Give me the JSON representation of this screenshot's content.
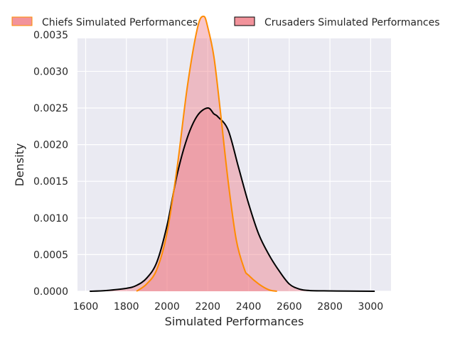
{
  "chart_data": {
    "type": "area",
    "xlabel": "Simulated Performances",
    "ylabel": "Density",
    "xlim": [
      1560,
      3100
    ],
    "ylim": [
      0,
      0.00345
    ],
    "x_ticks": [
      1600,
      1800,
      2000,
      2200,
      2400,
      2600,
      2800,
      3000
    ],
    "x_tick_labels": [
      "1600",
      "1800",
      "2000",
      "2200",
      "2400",
      "2600",
      "2800",
      "3000"
    ],
    "y_ticks": [
      0,
      0.0005,
      0.001,
      0.0015,
      0.002,
      0.0025,
      0.003,
      0.0035
    ],
    "y_tick_labels": [
      "0.0000",
      "0.0005",
      "0.0010",
      "0.0015",
      "0.0020",
      "0.0025",
      "0.0030",
      "0.0035"
    ],
    "grid": true,
    "legend_placement": "top, above plot",
    "colors": {
      "background": "#eaeaf2",
      "grid": "#ffffff",
      "chiefs_fill": "#f0808a",
      "chiefs_line": "#ff8c00",
      "crusaders_fill": "#f0808a",
      "crusaders_line": "#000000"
    },
    "series": [
      {
        "name": "Chiefs Simulated Performances",
        "x": [
          1850,
          1900,
          1950,
          2000,
          2050,
          2100,
          2150,
          2180,
          2200,
          2230,
          2260,
          2300,
          2340,
          2380,
          2400,
          2450,
          2500,
          2540
        ],
        "y": [
          0,
          0.0001,
          0.0003,
          0.0008,
          0.0017,
          0.0028,
          0.0036,
          0.00375,
          0.0036,
          0.0032,
          0.0025,
          0.0015,
          0.0007,
          0.0003,
          0.00022,
          0.0001,
          2e-05,
          0
        ]
      },
      {
        "name": "Crusaders Simulated Performances",
        "x": [
          1620,
          1700,
          1800,
          1850,
          1900,
          1950,
          2000,
          2050,
          2100,
          2150,
          2200,
          2230,
          2250,
          2300,
          2350,
          2400,
          2450,
          2500,
          2550,
          2600,
          2650,
          2700,
          2800,
          2900,
          3020
        ],
        "y": [
          0,
          1e-05,
          4e-05,
          8e-05,
          0.00018,
          0.0004,
          0.0009,
          0.0016,
          0.0021,
          0.0024,
          0.0025,
          0.00242,
          0.00238,
          0.0022,
          0.0017,
          0.0012,
          0.00078,
          0.0005,
          0.00028,
          0.0001,
          3e-05,
          1e-05,
          5e-06,
          2e-06,
          0
        ]
      }
    ]
  }
}
